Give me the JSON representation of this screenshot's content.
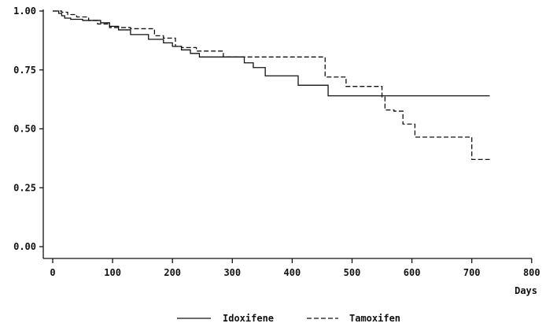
{
  "chart_data": {
    "type": "line",
    "subtype": "step",
    "title": "",
    "xlabel": "Days",
    "ylabel": "",
    "xlim": [
      0,
      800
    ],
    "ylim": [
      0,
      1
    ],
    "x_ticks": [
      0,
      100,
      200,
      300,
      400,
      500,
      600,
      700,
      800
    ],
    "x_tick_labels": [
      "0",
      "100",
      "200",
      "300",
      "400",
      "500",
      "600",
      "700",
      "800"
    ],
    "y_ticks": [
      0,
      0.25,
      0.5,
      0.75,
      1
    ],
    "y_tick_labels": [
      "0.00",
      "0.25",
      "0.50",
      "0.75",
      "1.00"
    ],
    "grid": false,
    "legend_position": "bottom",
    "series": [
      {
        "name": "Idoxifene",
        "line_style": "solid",
        "color": "#111111",
        "x": [
          0,
          10,
          15,
          20,
          30,
          50,
          80,
          95,
          110,
          130,
          160,
          185,
          200,
          215,
          230,
          245,
          320,
          335,
          355,
          410,
          460,
          730
        ],
        "y": [
          1.0,
          0.99,
          0.98,
          0.97,
          0.965,
          0.96,
          0.95,
          0.935,
          0.92,
          0.9,
          0.88,
          0.865,
          0.85,
          0.835,
          0.82,
          0.805,
          0.78,
          0.76,
          0.725,
          0.685,
          0.64,
          0.64
        ]
      },
      {
        "name": "Tamoxifen",
        "line_style": "dashed",
        "color": "#111111",
        "x": [
          0,
          15,
          25,
          40,
          60,
          75,
          95,
          120,
          130,
          170,
          185,
          205,
          215,
          240,
          285,
          450,
          455,
          490,
          550,
          555,
          570,
          585,
          605,
          700,
          730
        ],
        "y": [
          1.0,
          0.995,
          0.985,
          0.975,
          0.96,
          0.945,
          0.93,
          0.93,
          0.925,
          0.895,
          0.885,
          0.85,
          0.845,
          0.83,
          0.805,
          0.805,
          0.72,
          0.68,
          0.635,
          0.58,
          0.575,
          0.52,
          0.465,
          0.37,
          0.37
        ]
      }
    ]
  }
}
